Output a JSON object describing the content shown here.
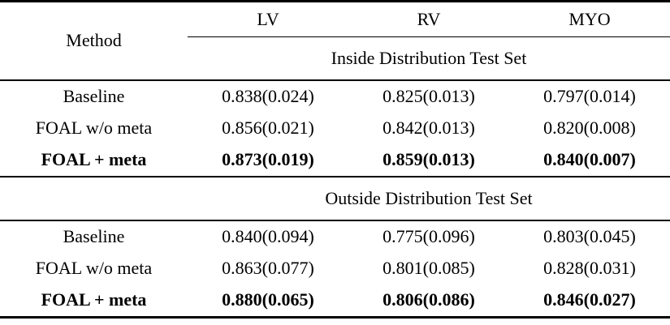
{
  "table": {
    "method_header": "Method",
    "columns": [
      "LV",
      "RV",
      "MYO"
    ],
    "sections": [
      {
        "title": "Inside Distribution Test Set",
        "rows": [
          {
            "method": "Baseline",
            "bold": false,
            "values": [
              "0.838(0.024)",
              "0.825(0.013)",
              "0.797(0.014)"
            ]
          },
          {
            "method": "FOAL w/o meta",
            "bold": false,
            "values": [
              "0.856(0.021)",
              "0.842(0.013)",
              "0.820(0.008)"
            ]
          },
          {
            "method": "FOAL + meta",
            "bold": true,
            "values": [
              "0.873(0.019)",
              "0.859(0.013)",
              "0.840(0.007)"
            ]
          }
        ]
      },
      {
        "title": "Outside Distribution Test Set",
        "rows": [
          {
            "method": "Baseline",
            "bold": false,
            "values": [
              "0.840(0.094)",
              "0.775(0.096)",
              "0.803(0.045)"
            ]
          },
          {
            "method": "FOAL w/o meta",
            "bold": false,
            "values": [
              "0.863(0.077)",
              "0.801(0.085)",
              "0.828(0.031)"
            ]
          },
          {
            "method": "FOAL + meta",
            "bold": true,
            "values": [
              "0.880(0.065)",
              "0.806(0.086)",
              "0.846(0.027)"
            ]
          }
        ]
      }
    ]
  }
}
